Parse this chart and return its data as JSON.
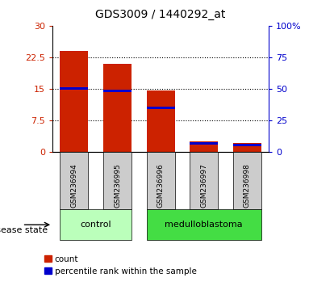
{
  "title": "GDS3009 / 1440292_at",
  "samples": [
    "GSM236994",
    "GSM236995",
    "GSM236996",
    "GSM236997",
    "GSM236998"
  ],
  "count_values": [
    24.0,
    21.0,
    14.5,
    2.5,
    2.0
  ],
  "percentile_values": [
    15.0,
    14.4,
    10.5,
    2.0,
    1.5
  ],
  "left_ylim": [
    0,
    30
  ],
  "right_ylim": [
    0,
    100
  ],
  "left_yticks": [
    0,
    7.5,
    15,
    22.5,
    30
  ],
  "right_yticks": [
    0,
    25,
    50,
    75,
    100
  ],
  "left_yticklabels": [
    "0",
    "7.5",
    "15",
    "22.5",
    "30"
  ],
  "right_yticklabels": [
    "0",
    "25",
    "50",
    "75",
    "100%"
  ],
  "red_color": "#cc2200",
  "blue_color": "#0000cc",
  "bar_width": 0.65,
  "groups": [
    {
      "label": "control",
      "indices": [
        0,
        1
      ],
      "color": "#bbffbb"
    },
    {
      "label": "medulloblastoma",
      "indices": [
        2,
        3,
        4
      ],
      "color": "#44dd44"
    }
  ],
  "group_label": "disease state",
  "legend_count": "count",
  "legend_percentile": "percentile rank within the sample",
  "sample_bg": "#cccccc",
  "plot_bg": "#ffffff"
}
